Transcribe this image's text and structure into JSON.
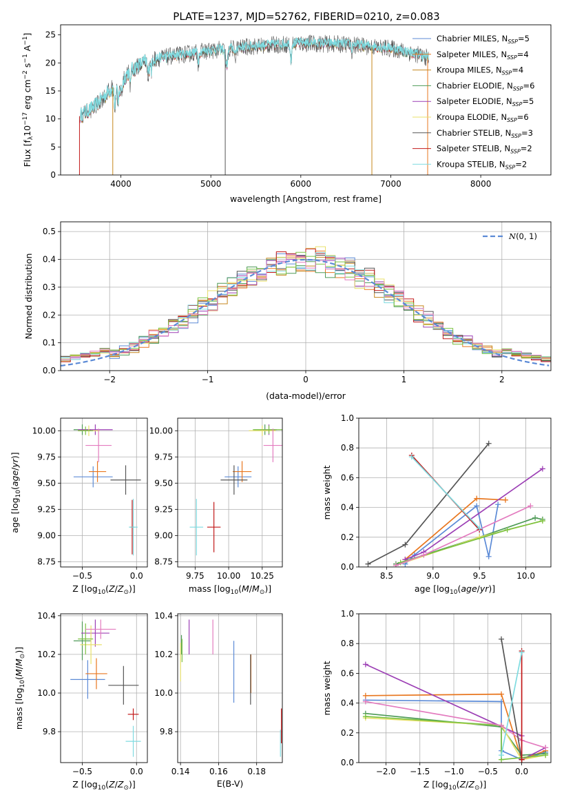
{
  "figure_title": "PLATE=1237, MJD=52762, FIBERID=0210, z=0.083",
  "colors": {
    "Chabrier MILES": "#5b8ad6",
    "Salpeter MILES": "#e8761e",
    "Kroupa MILES": "#c5861b",
    "Chabrier ELODIE": "#4d9a56",
    "Salpeter ELODIE": "#9c3fb5",
    "Kroupa ELODIE": "#e8e06a",
    "Chabrier STELIB": "#555555",
    "Salpeter STELIB": "#c21818",
    "Kroupa STELIB": "#7fdbe0",
    "Chabrier ELODIE alt": "#7cc242",
    "pink": "#e37bbf",
    "normal": "#5b8ad6"
  },
  "chart_data": [
    {
      "id": "spectrum",
      "type": "line",
      "xlabel": "wavelength [Angstrom, rest frame]",
      "ylabel": "Flux [f_λ10^-17 erg cm^-2 s^-1 A^-1]",
      "xlim": [
        3330,
        8780
      ],
      "ylim": [
        0,
        26.8
      ],
      "xticks": [
        4000,
        5000,
        6000,
        7000,
        8000
      ],
      "yticks": [
        0,
        5,
        10,
        15,
        20,
        25
      ],
      "grid": false,
      "legend_position": "top-right",
      "series": [
        {
          "name": "Chabrier MILES, N_SSP=5",
          "key": "Chabrier MILES"
        },
        {
          "name": "Salpeter MILES, N_SSP=4",
          "key": "Salpeter MILES"
        },
        {
          "name": "Kroupa MILES, N_SSP=4",
          "key": "Kroupa MILES"
        },
        {
          "name": "Chabrier ELODIE, N_SSP=6",
          "key": "Chabrier ELODIE"
        },
        {
          "name": "Salpeter ELODIE, N_SSP=5",
          "key": "Salpeter ELODIE"
        },
        {
          "name": "Kroupa ELODIE, N_SSP=6",
          "key": "Kroupa ELODIE"
        },
        {
          "name": "Chabrier STELIB, N_SSP=3",
          "key": "Chabrier STELIB"
        },
        {
          "name": "Salpeter STELIB, N_SSP=2",
          "key": "Salpeter STELIB"
        },
        {
          "name": "Kroupa STELIB, N_SSP=2",
          "key": "Kroupa STELIB"
        }
      ],
      "envelope": [
        [
          3540,
          10.5
        ],
        [
          3700,
          12
        ],
        [
          3900,
          15.5
        ],
        [
          4100,
          18.5
        ],
        [
          4300,
          20.5
        ],
        [
          4600,
          21.3
        ],
        [
          5000,
          22.2
        ],
        [
          5500,
          23
        ],
        [
          6000,
          23.5
        ],
        [
          6500,
          23.3
        ],
        [
          7000,
          22.6
        ],
        [
          7300,
          21.5
        ],
        [
          7420,
          20.8
        ]
      ],
      "spikes": [
        [
          3540,
          0,
          "Salpeter STELIB"
        ],
        [
          3910,
          0,
          "Kroupa MILES"
        ],
        [
          5160,
          0,
          "Chabrier STELIB"
        ],
        [
          6790,
          0,
          "Kroupa MILES"
        ],
        [
          7410,
          0,
          "Salpeter MILES"
        ]
      ]
    },
    {
      "id": "residuals",
      "type": "histogram",
      "xlabel": "(data-model)/error",
      "ylabel": "Normed distribution",
      "xlim": [
        -2.5,
        2.5
      ],
      "ylim": [
        0,
        0.535
      ],
      "xticks": [
        -2,
        -1,
        0,
        1,
        2
      ],
      "yticks": [
        0.0,
        0.1,
        0.2,
        0.3,
        0.4,
        0.5
      ],
      "grid": true,
      "legend_position": "top-right",
      "legend": "N(0,1)",
      "bin_width": 0.1
    },
    {
      "id": "age_vs_Z",
      "type": "scatter",
      "xlabel": "Z [log10(Z/Z⊙)]",
      "ylabel": "age  [log10(age/yr)]",
      "xlim": [
        -0.7,
        0.1
      ],
      "ylim": [
        8.7,
        10.12
      ],
      "xticks": [
        -0.5,
        0.0
      ],
      "yticks": [
        8.75,
        9.0,
        9.25,
        9.5,
        9.75,
        10.0
      ],
      "grid": true,
      "points": [
        {
          "c": "Chabrier MILES",
          "x": -0.4,
          "xe": 0.18,
          "y": 9.56,
          "ye": 0.1
        },
        {
          "c": "Salpeter MILES",
          "x": -0.36,
          "xe": 0.08,
          "y": 9.61,
          "ye": 0.1
        },
        {
          "c": "Chabrier ELODIE",
          "x": -0.5,
          "xe": 0.08,
          "y": 10.01,
          "ye": 0.05
        },
        {
          "c": "Salpeter ELODIE",
          "x": -0.38,
          "xe": 0.16,
          "y": 10.01,
          "ye": 0.05
        },
        {
          "c": "Kroupa ELODIE",
          "x": -0.44,
          "xe": 0.1,
          "y": 10.0,
          "ye": 0.05
        },
        {
          "c": "Chabrier ELODIE alt",
          "x": -0.47,
          "xe": 0.07,
          "y": 10.0,
          "ye": 0.04
        },
        {
          "c": "pink",
          "x": -0.35,
          "xe": 0.12,
          "y": 9.86,
          "ye": 0.16
        },
        {
          "c": "Chabrier STELIB",
          "x": -0.1,
          "xe": 0.14,
          "y": 9.53,
          "ye": 0.14
        },
        {
          "c": "Salpeter STELIB",
          "x": -0.04,
          "xe": 0.02,
          "y": 9.08,
          "ye": 0.26
        },
        {
          "c": "Kroupa STELIB",
          "x": -0.03,
          "xe": 0.04,
          "y": 9.08,
          "ye": 0.27
        }
      ]
    },
    {
      "id": "age_vs_mass",
      "type": "scatter",
      "xlabel": "mass [log10(M/M⊙)]",
      "ylabel": "",
      "xlim": [
        9.62,
        10.4
      ],
      "ylim": [
        8.7,
        10.12
      ],
      "xticks": [
        9.75,
        10.0,
        10.25
      ],
      "yticks": [
        8.75,
        9.0,
        9.25,
        9.5,
        9.75,
        10.0
      ],
      "grid": true,
      "points": [
        {
          "c": "Chabrier MILES",
          "x": 10.07,
          "xe": 0.1,
          "y": 9.56,
          "ye": 0.1
        },
        {
          "c": "Salpeter MILES",
          "x": 10.1,
          "xe": 0.07,
          "y": 9.61,
          "ye": 0.1
        },
        {
          "c": "Chabrier ELODIE",
          "x": 10.27,
          "xe": 0.08,
          "y": 10.01,
          "ye": 0.05
        },
        {
          "c": "Salpeter ELODIE",
          "x": 10.3,
          "xe": 0.06,
          "y": 10.01,
          "ye": 0.05
        },
        {
          "c": "Kroupa ELODIE",
          "x": 10.25,
          "xe": 0.1,
          "y": 10.0,
          "ye": 0.05
        },
        {
          "c": "Chabrier ELODIE alt",
          "x": 10.3,
          "xe": 0.12,
          "y": 10.01,
          "ye": 0.04
        },
        {
          "c": "pink",
          "x": 10.33,
          "xe": 0.07,
          "y": 9.86,
          "ye": 0.16
        },
        {
          "c": "Chabrier STELIB",
          "x": 10.04,
          "xe": 0.1,
          "y": 9.53,
          "ye": 0.14
        },
        {
          "c": "Salpeter STELIB",
          "x": 9.89,
          "xe": 0.05,
          "y": 9.08,
          "ye": 0.24
        },
        {
          "c": "Kroupa STELIB",
          "x": 9.76,
          "xe": 0.05,
          "y": 9.08,
          "ye": 0.27
        }
      ]
    },
    {
      "id": "weight_vs_age",
      "type": "line",
      "xlabel": "age  [log10(age/yr)]",
      "ylabel": "mass weight",
      "xlim": [
        8.2,
        10.27
      ],
      "ylim": [
        0,
        1.0
      ],
      "xticks": [
        8.5,
        9.0,
        9.5,
        10.0
      ],
      "yticks": [
        0.0,
        0.2,
        0.4,
        0.6,
        0.8,
        1.0
      ],
      "grid": true,
      "series": [
        {
          "c": "Chabrier MILES",
          "pts": [
            [
              8.7,
              0.02
            ],
            [
              8.8,
              0.08
            ],
            [
              9.47,
              0.41
            ],
            [
              9.6,
              0.07
            ],
            [
              9.7,
              0.42
            ]
          ]
        },
        {
          "c": "Salpeter MILES",
          "pts": [
            [
              8.7,
              0.05
            ],
            [
              9.47,
              0.46
            ],
            [
              9.78,
              0.45
            ]
          ]
        },
        {
          "c": "Chabrier ELODIE",
          "pts": [
            [
              8.6,
              0.02
            ],
            [
              9.5,
              0.2
            ],
            [
              10.1,
              0.33
            ],
            [
              10.18,
              0.32
            ]
          ]
        },
        {
          "c": "Salpeter ELODIE",
          "pts": [
            [
              8.7,
              0.05
            ],
            [
              8.9,
              0.1
            ],
            [
              10.18,
              0.66
            ]
          ]
        },
        {
          "c": "Kroupa ELODIE",
          "pts": [
            [
              8.6,
              0.01
            ],
            [
              9.5,
              0.2
            ],
            [
              10.18,
              0.31
            ]
          ]
        },
        {
          "c": "Chabrier ELODIE alt",
          "pts": [
            [
              8.65,
              0.03
            ],
            [
              9.8,
              0.25
            ],
            [
              10.18,
              0.31
            ]
          ]
        },
        {
          "c": "pink",
          "pts": [
            [
              8.6,
              0.01
            ],
            [
              8.9,
              0.08
            ],
            [
              10.05,
              0.41
            ]
          ]
        },
        {
          "c": "Chabrier STELIB",
          "pts": [
            [
              8.3,
              0.02
            ],
            [
              8.7,
              0.15
            ],
            [
              9.6,
              0.83
            ]
          ]
        },
        {
          "c": "Salpeter STELIB",
          "pts": [
            [
              8.77,
              0.75
            ],
            [
              9.5,
              0.25
            ]
          ]
        },
        {
          "c": "Kroupa STELIB",
          "pts": [
            [
              8.77,
              0.74
            ],
            [
              9.5,
              0.26
            ]
          ]
        }
      ]
    },
    {
      "id": "mass_vs_Z",
      "type": "scatter",
      "xlabel": "Z [log10(Z/Z⊙)]",
      "ylabel": "mass [log10(M/M⊙)]",
      "xlim": [
        -0.7,
        0.1
      ],
      "ylim": [
        9.64,
        10.41
      ],
      "xticks": [
        -0.5,
        0.0
      ],
      "yticks": [
        9.8,
        10.0,
        10.2,
        10.4
      ],
      "grid": true,
      "points": [
        {
          "c": "Chabrier MILES",
          "x": -0.45,
          "xe": 0.16,
          "y": 10.07,
          "ye": 0.1
        },
        {
          "c": "Salpeter MILES",
          "x": -0.37,
          "xe": 0.1,
          "y": 10.1,
          "ye": 0.08
        },
        {
          "c": "Chabrier ELODIE",
          "x": -0.5,
          "xe": 0.08,
          "y": 10.27,
          "ye": 0.1
        },
        {
          "c": "Salpeter ELODIE",
          "x": -0.38,
          "xe": 0.13,
          "y": 10.31,
          "ye": 0.07
        },
        {
          "c": "Kroupa ELODIE",
          "x": -0.42,
          "xe": 0.1,
          "y": 10.25,
          "ye": 0.1
        },
        {
          "c": "Chabrier ELODIE alt",
          "x": -0.47,
          "xe": 0.07,
          "y": 10.28,
          "ye": 0.08
        },
        {
          "c": "pink",
          "x": -0.33,
          "xe": 0.14,
          "y": 10.33,
          "ye": 0.05
        },
        {
          "c": "Chabrier STELIB",
          "x": -0.12,
          "xe": 0.14,
          "y": 10.04,
          "ye": 0.1
        },
        {
          "c": "Salpeter STELIB",
          "x": -0.03,
          "xe": 0.05,
          "y": 9.89,
          "ye": 0.03
        },
        {
          "c": "Kroupa STELIB",
          "x": -0.03,
          "xe": 0.07,
          "y": 9.75,
          "ye": 0.08
        }
      ]
    },
    {
      "id": "mass_vs_EBV",
      "type": "scatter",
      "xlabel": "E(B-V)",
      "ylabel": "",
      "xlim": [
        0.1385,
        0.1935
      ],
      "ylim": [
        9.64,
        10.41
      ],
      "xticks": [
        0.14,
        0.16,
        0.18
      ],
      "yticks": [
        9.8,
        10.0,
        10.2,
        10.4
      ],
      "grid": true,
      "points": [
        {
          "c": "Chabrier MILES",
          "x": 0.168,
          "xe": 0,
          "y": 10.11,
          "ye": 0.16
        },
        {
          "c": "Salpeter MILES",
          "x": 0.177,
          "xe": 0,
          "y": 10.1,
          "ye": 0.1
        },
        {
          "c": "Chabrier ELODIE",
          "x": 0.1405,
          "xe": 0,
          "y": 10.25,
          "ye": 0.05
        },
        {
          "c": "Salpeter ELODIE",
          "x": 0.1445,
          "xe": 0,
          "y": 10.29,
          "ye": 0.09
        },
        {
          "c": "Kroupa ELODIE",
          "x": 0.14,
          "xe": 0,
          "y": 10.16,
          "ye": 0.1
        },
        {
          "c": "Chabrier ELODIE alt",
          "x": 0.1408,
          "xe": 0,
          "y": 10.22,
          "ye": 0.06
        },
        {
          "c": "pink",
          "x": 0.157,
          "xe": 0,
          "y": 10.29,
          "ye": 0.09
        },
        {
          "c": "Chabrier STELIB",
          "x": 0.1768,
          "xe": 0,
          "y": 10.07,
          "ye": 0.13
        },
        {
          "c": "Salpeter STELIB",
          "x": 0.193,
          "xe": 0,
          "y": 9.83,
          "ye": 0.09
        },
        {
          "c": "Kroupa STELIB",
          "x": 0.1925,
          "xe": 0,
          "y": 9.74,
          "ye": 0.07
        }
      ]
    },
    {
      "id": "weight_vs_Z",
      "type": "line",
      "xlabel": "Z [log10(Z/Z⊙)]",
      "ylabel": "mass weight",
      "xlim": [
        -2.4,
        0.43
      ],
      "ylim": [
        0,
        1.0
      ],
      "xticks": [
        -2.0,
        -1.5,
        -1.0,
        -0.5,
        0.0
      ],
      "yticks": [
        0.0,
        0.2,
        0.4,
        0.6,
        0.8,
        1.0
      ],
      "grid": true,
      "series": [
        {
          "c": "Chabrier MILES",
          "pts": [
            [
              -2.3,
              0.42
            ],
            [
              -0.3,
              0.41
            ],
            [
              -0.3,
              0.08
            ],
            [
              0.0,
              0.02
            ],
            [
              0.35,
              0.07
            ]
          ]
        },
        {
          "c": "Salpeter MILES",
          "pts": [
            [
              -2.3,
              0.45
            ],
            [
              -0.3,
              0.46
            ],
            [
              0.0,
              0.02
            ],
            [
              0.35,
              0.08
            ]
          ]
        },
        {
          "c": "Chabrier ELODIE",
          "pts": [
            [
              -2.3,
              0.33
            ],
            [
              -0.3,
              0.24
            ],
            [
              0.0,
              0.05
            ],
            [
              0.35,
              0.06
            ]
          ]
        },
        {
          "c": "Salpeter ELODIE",
          "pts": [
            [
              -2.3,
              0.66
            ],
            [
              0.0,
              0.18
            ],
            [
              0.0,
              0.02
            ],
            [
              0.35,
              0.1
            ]
          ]
        },
        {
          "c": "Kroupa ELODIE",
          "pts": [
            [
              -2.3,
              0.3
            ],
            [
              -0.3,
              0.25
            ],
            [
              0.0,
              0.02
            ],
            [
              0.35,
              0.05
            ]
          ]
        },
        {
          "c": "Chabrier ELODIE alt",
          "pts": [
            [
              -2.3,
              0.31
            ],
            [
              -0.3,
              0.25
            ],
            [
              -0.3,
              0.02
            ],
            [
              0.35,
              0.05
            ]
          ]
        },
        {
          "c": "pink",
          "pts": [
            [
              -2.3,
              0.41
            ],
            [
              -0.3,
              0.25
            ],
            [
              0.0,
              0.15
            ],
            [
              0.35,
              0.1
            ]
          ]
        },
        {
          "c": "Chabrier STELIB",
          "pts": [
            [
              -0.3,
              0.83
            ],
            [
              0.0,
              0.02
            ]
          ]
        },
        {
          "c": "Salpeter STELIB",
          "pts": [
            [
              0.0,
              0.75
            ],
            [
              0.0,
              0.02
            ]
          ]
        },
        {
          "c": "Kroupa STELIB",
          "pts": [
            [
              0.0,
              0.74
            ],
            [
              -0.3,
              0.05
            ]
          ]
        }
      ]
    }
  ]
}
